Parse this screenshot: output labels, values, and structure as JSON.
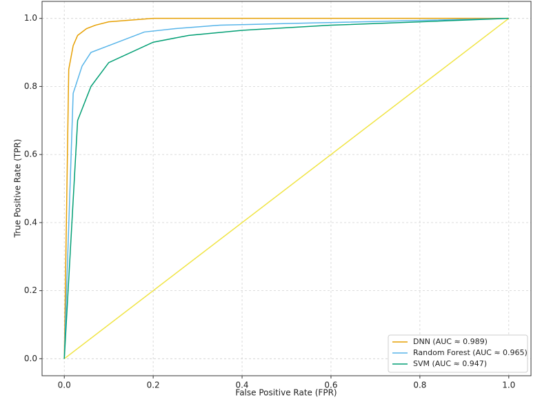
{
  "chart_data": {
    "type": "line",
    "xlabel": "False Positive Rate (FPR)",
    "ylabel": "True Positive Rate (TPR)",
    "xlim": [
      -0.05,
      1.05
    ],
    "ylim": [
      -0.05,
      1.05
    ],
    "xticks": [
      {
        "value": 0,
        "label": "0.0"
      },
      {
        "value": 0.2,
        "label": "0.2"
      },
      {
        "value": 0.4,
        "label": "0.4"
      },
      {
        "value": 0.6,
        "label": "0.6"
      },
      {
        "value": 0.8,
        "label": "0.8"
      },
      {
        "value": 1,
        "label": "1.0"
      }
    ],
    "yticks": [
      {
        "value": 0,
        "label": "0.0"
      },
      {
        "value": 0.2,
        "label": "0.2"
      },
      {
        "value": 0.4,
        "label": "0.4"
      },
      {
        "value": 0.6,
        "label": "0.6"
      },
      {
        "value": 0.8,
        "label": "0.8"
      },
      {
        "value": 1,
        "label": "1.0"
      }
    ],
    "grid": true,
    "legend": "lower right",
    "series": [
      {
        "name": "DNN (AUC ≈ 0.989)",
        "color": "#e69f00",
        "x": [
          0,
          0.01,
          0.02,
          0.03,
          0.05,
          0.07,
          0.1,
          0.2,
          1
        ],
        "values": [
          0,
          0.85,
          0.92,
          0.95,
          0.97,
          0.98,
          0.99,
          1,
          1
        ]
      },
      {
        "name": "Random Forest (AUC ≈ 0.965)",
        "color": "#56b4e9",
        "x": [
          0,
          0.02,
          0.04,
          0.06,
          0.1,
          0.18,
          0.25,
          0.35,
          0.5,
          1
        ],
        "values": [
          0,
          0.78,
          0.86,
          0.9,
          0.92,
          0.96,
          0.97,
          0.98,
          0.985,
          1
        ]
      },
      {
        "name": "SVM (AUC ≈ 0.947)",
        "color": "#009e73",
        "x": [
          0,
          0.03,
          0.06,
          0.1,
          0.2,
          0.28,
          0.4,
          0.6,
          1
        ],
        "values": [
          0,
          0.7,
          0.8,
          0.87,
          0.93,
          0.95,
          0.965,
          0.98,
          1
        ]
      }
    ],
    "diagonal": {
      "color": "#f0e442",
      "x": [
        0,
        1
      ],
      "values": [
        0,
        1
      ]
    }
  }
}
